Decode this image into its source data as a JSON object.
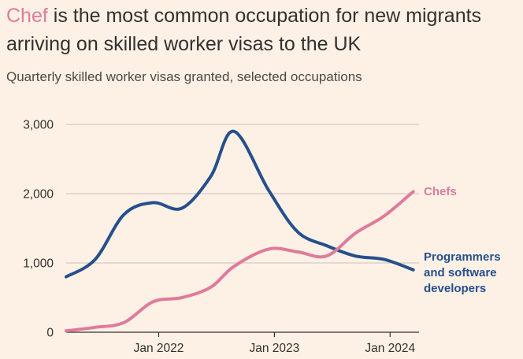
{
  "headline": {
    "accent": "Chef",
    "rest": " is the most common occupation for new migrants arriving on skilled worker visas to the UK"
  },
  "subtitle": "Quarterly skilled worker visas granted, selected occupations",
  "colors": {
    "background": "#fdf1e6",
    "chefs": "#e07a9b",
    "programmers": "#264f8c",
    "grid": "#ccc1b7",
    "axis": "#33302e"
  },
  "chart_data": {
    "type": "line",
    "title": "Chef is the most common occupation for new migrants arriving on skilled worker visas to the UK",
    "subtitle": "Quarterly skilled worker visas granted, selected occupations",
    "xlabel": "",
    "ylabel": "",
    "x_tick_labels": [
      "Jan 2022",
      "Jan 2023",
      "Jan 2024"
    ],
    "x_tick_values": [
      2022.0,
      2023.0,
      2024.0
    ],
    "xlim": [
      2021.2,
      2024.25
    ],
    "y_tick_labels": [
      "0",
      "1,000",
      "2,000",
      "3,000"
    ],
    "y_tick_values": [
      0,
      1000,
      2000,
      3000
    ],
    "ylim": [
      0,
      3000
    ],
    "grid": true,
    "series": [
      {
        "name": "Programmers and software developers",
        "label_lines": [
          "Programmers",
          "and software",
          "developers"
        ],
        "color": "#264f8c",
        "x": [
          2021.2,
          2021.45,
          2021.7,
          2021.95,
          2022.2,
          2022.45,
          2022.65,
          2022.95,
          2023.2,
          2023.45,
          2023.7,
          2023.95,
          2024.2
        ],
        "values": [
          800,
          1050,
          1700,
          1870,
          1790,
          2250,
          2900,
          2050,
          1450,
          1250,
          1100,
          1050,
          900
        ]
      },
      {
        "name": "Chefs",
        "label_lines": [
          "Chefs"
        ],
        "color": "#e07a9b",
        "x": [
          2021.2,
          2021.45,
          2021.7,
          2021.95,
          2022.2,
          2022.45,
          2022.65,
          2022.95,
          2023.2,
          2023.45,
          2023.7,
          2023.95,
          2024.2
        ],
        "values": [
          20,
          70,
          140,
          440,
          500,
          650,
          950,
          1200,
          1160,
          1100,
          1430,
          1680,
          2030
        ]
      }
    ]
  }
}
